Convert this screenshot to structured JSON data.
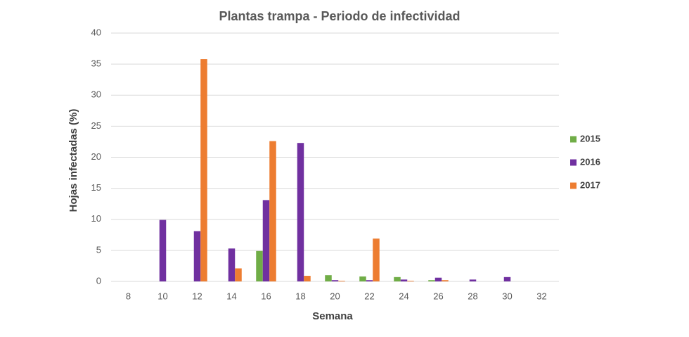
{
  "chart_data": {
    "type": "bar",
    "title": "Plantas trampa - Periodo de infectividad",
    "x_label": "Semana",
    "y_label": "Hojas infectadas (%)",
    "categories": [
      8,
      10,
      12,
      14,
      16,
      18,
      20,
      22,
      24,
      26,
      28,
      30,
      32
    ],
    "series": [
      {
        "name": "2015",
        "color": "#70ad47",
        "values": [
          0,
          0,
          0,
          0,
          4.9,
          0,
          1.0,
          0.8,
          0.7,
          0.2,
          0,
          0,
          0
        ]
      },
      {
        "name": "2016",
        "color": "#7030a0",
        "values": [
          0,
          9.9,
          8.1,
          5.3,
          13.1,
          22.3,
          0.2,
          0.2,
          0.3,
          0.6,
          0.3,
          0.7,
          0
        ]
      },
      {
        "name": "2017",
        "color": "#ed7d31",
        "values": [
          0,
          0,
          35.8,
          2.1,
          22.6,
          0.9,
          0.1,
          6.9,
          0.1,
          0.2,
          0,
          0,
          0
        ]
      }
    ],
    "ylim": [
      0,
      40
    ],
    "yticks": [
      0,
      5,
      10,
      15,
      20,
      25,
      30,
      35,
      40
    ],
    "grid": true,
    "legend": "right"
  }
}
